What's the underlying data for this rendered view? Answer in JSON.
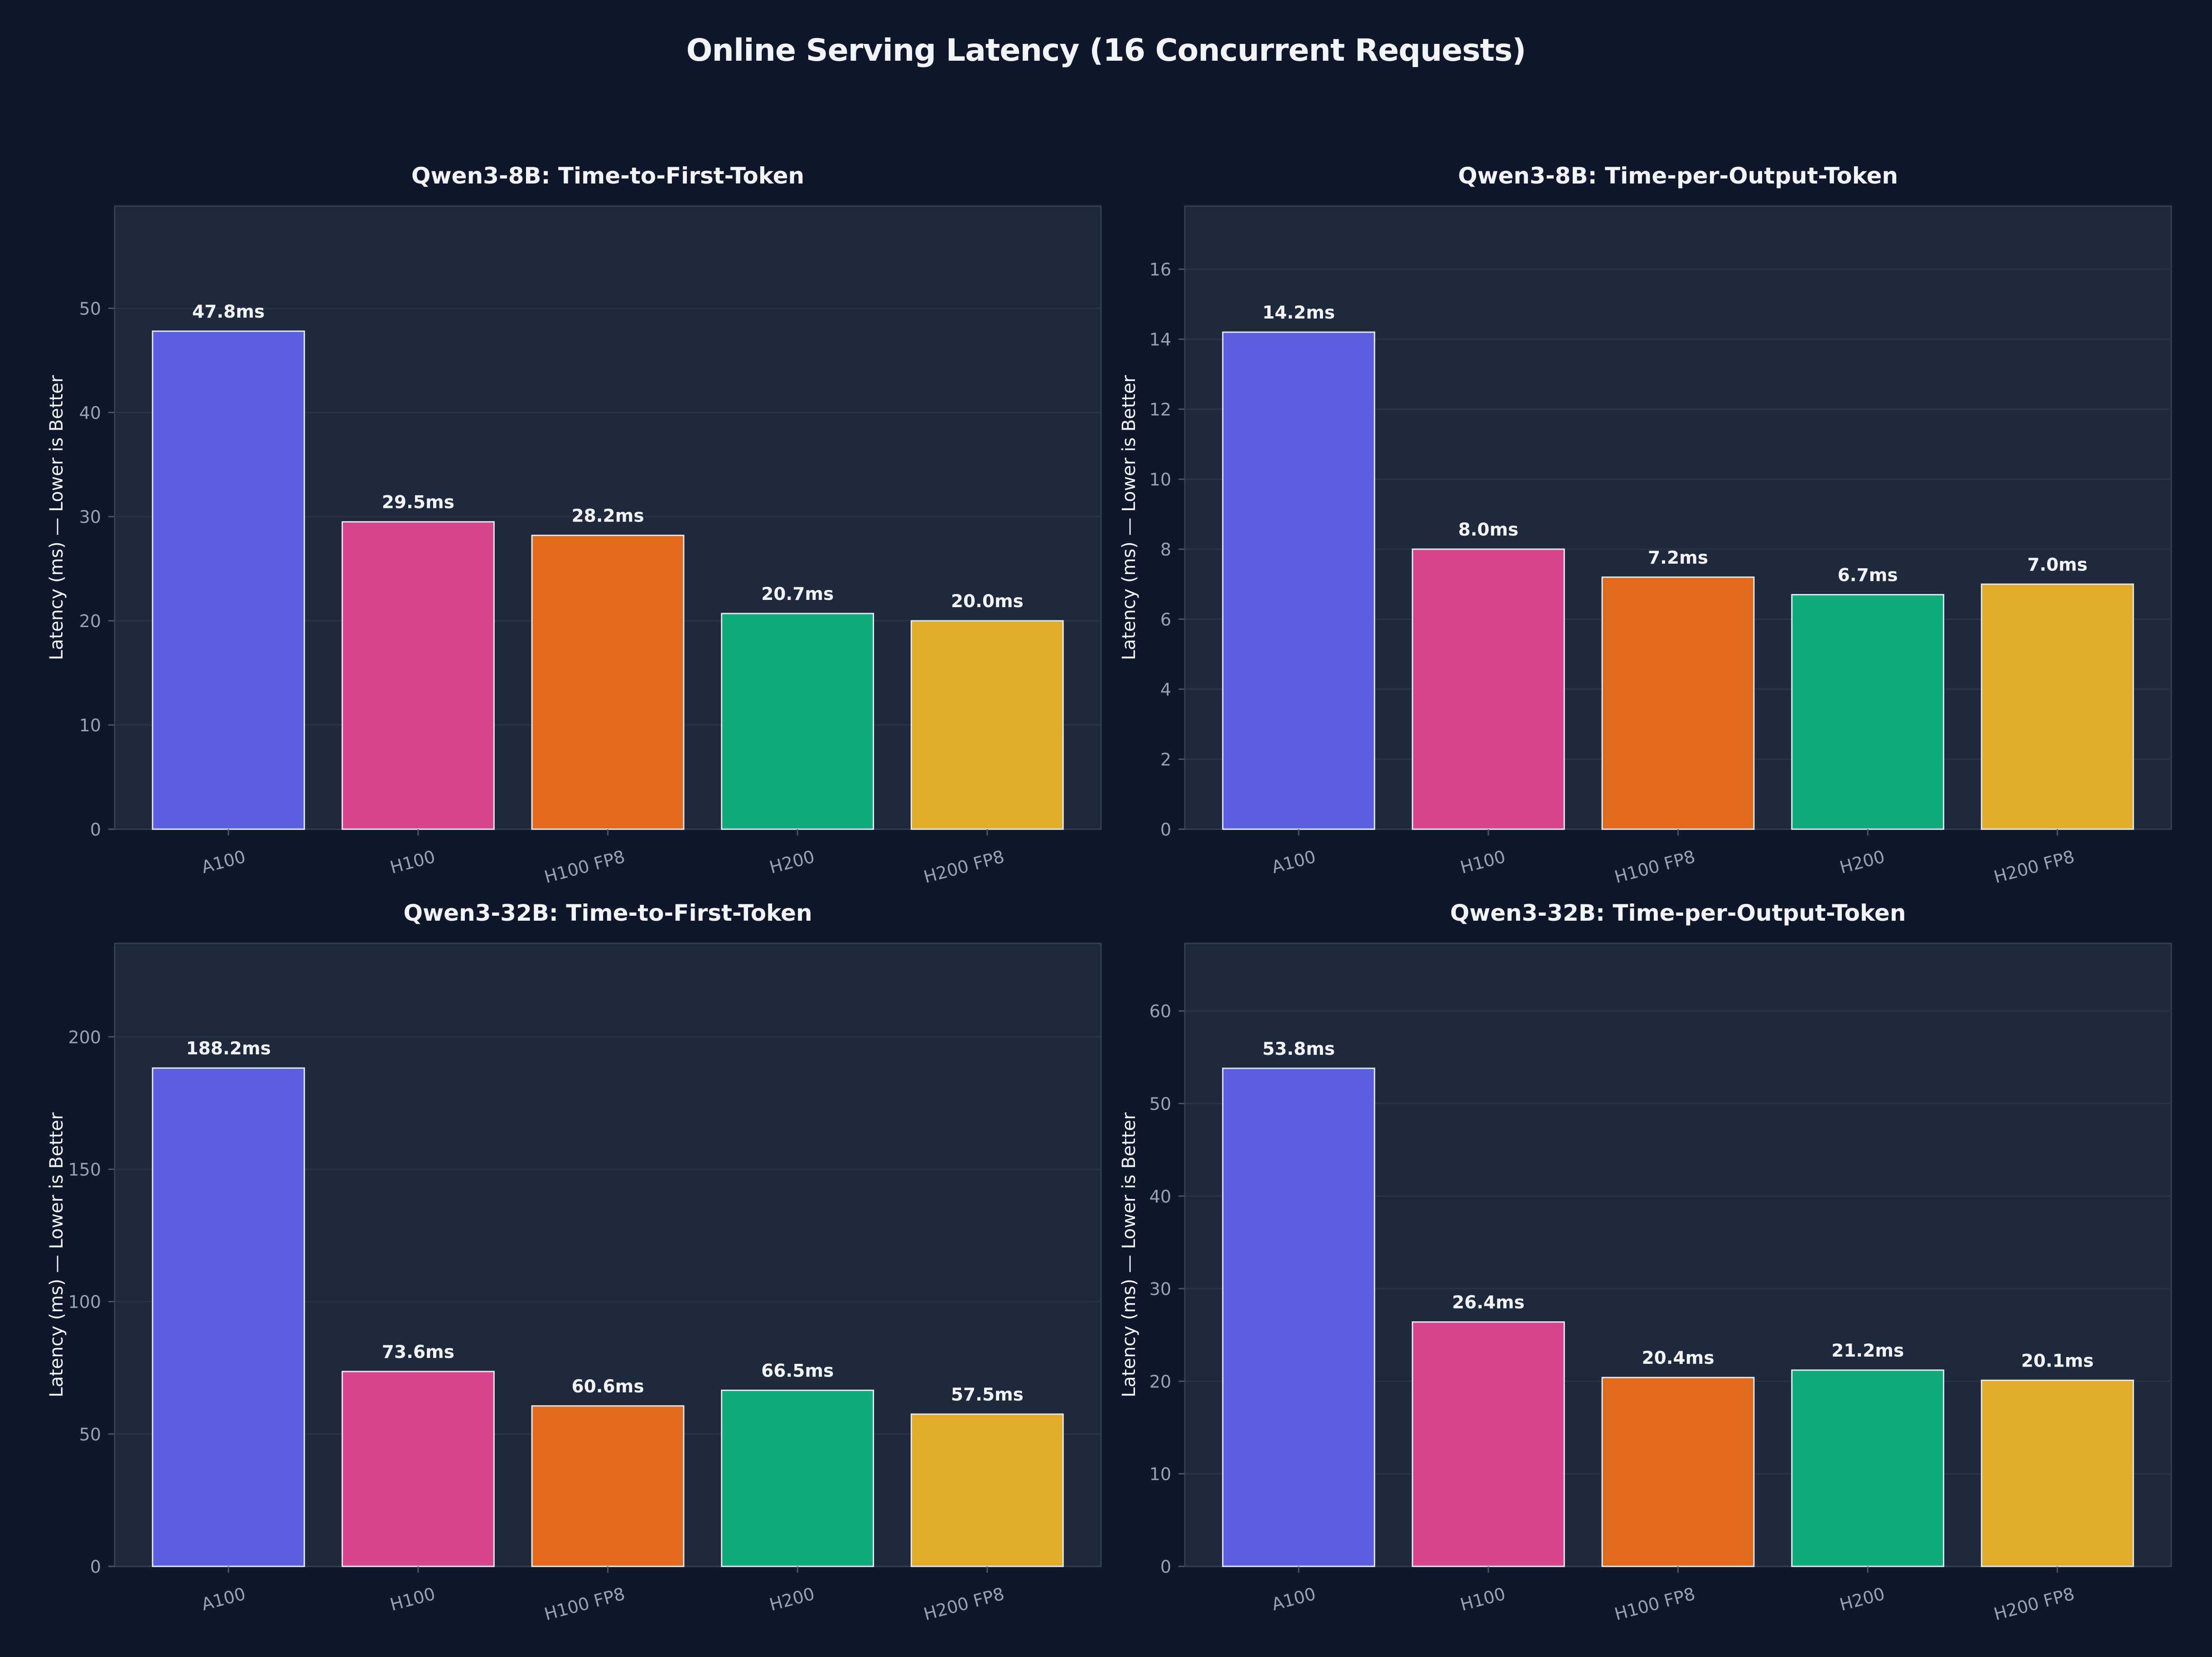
{
  "figure": {
    "title": "Online Serving Latency (16 Concurrent Requests)"
  },
  "colors": {
    "background": "#0f172a",
    "panel": "#1e293b",
    "grid": "#273449",
    "axis_text": "#94a3b8",
    "title_text": "#f1f5f9",
    "bar_edge": "#e2e8f0",
    "A100": "#5b5fdf",
    "H100": "#d6458e",
    "H100 FP8": "#e0691a",
    "H200": "#10ab7a",
    "H200 FP8": "#e0ac2a"
  },
  "chart_data": [
    {
      "type": "bar",
      "title": "Qwen3-8B: Time-to-First-Token",
      "xlabel": "",
      "ylabel": "Latency (ms) — Lower is Better",
      "categories": [
        "A100",
        "H100",
        "H100 FP8",
        "H200",
        "H200 FP8"
      ],
      "values": [
        47.8,
        29.5,
        28.2,
        20.7,
        20.0
      ],
      "data_labels": [
        "47.8ms",
        "29.5ms",
        "28.2ms",
        "20.7ms",
        "20.0ms"
      ],
      "ylim": [
        0,
        59.8
      ],
      "yticks": [
        0,
        10,
        20,
        30,
        40,
        50
      ],
      "ytick_labels": [
        "0",
        "10",
        "20",
        "30",
        "40",
        "50"
      ],
      "grid": true
    },
    {
      "type": "bar",
      "title": "Qwen3-8B: Time-per-Output-Token",
      "xlabel": "",
      "ylabel": "Latency (ms) — Lower is Better",
      "categories": [
        "A100",
        "H100",
        "H100 FP8",
        "H200",
        "H200 FP8"
      ],
      "values": [
        14.2,
        8.0,
        7.2,
        6.7,
        7.0
      ],
      "data_labels": [
        "14.2ms",
        "8.0ms",
        "7.2ms",
        "6.7ms",
        "7.0ms"
      ],
      "ylim": [
        0,
        17.8
      ],
      "yticks": [
        0,
        2,
        4,
        6,
        8,
        10,
        12,
        14,
        16
      ],
      "ytick_labels": [
        "0",
        "2",
        "4",
        "6",
        "8",
        "10",
        "12",
        "14",
        "16"
      ],
      "grid": true
    },
    {
      "type": "bar",
      "title": "Qwen3-32B: Time-to-First-Token",
      "xlabel": "",
      "ylabel": "Latency (ms) — Lower is Better",
      "categories": [
        "A100",
        "H100",
        "H100 FP8",
        "H200",
        "H200 FP8"
      ],
      "values": [
        188.2,
        73.6,
        60.6,
        66.5,
        57.5
      ],
      "data_labels": [
        "188.2ms",
        "73.6ms",
        "60.6ms",
        "66.5ms",
        "57.5ms"
      ],
      "ylim": [
        0,
        235.3
      ],
      "yticks": [
        0,
        50,
        100,
        150,
        200
      ],
      "ytick_labels": [
        "0",
        "50",
        "100",
        "150",
        "200"
      ],
      "grid": true
    },
    {
      "type": "bar",
      "title": "Qwen3-32B: Time-per-Output-Token",
      "xlabel": "",
      "ylabel": "Latency (ms) — Lower is Better",
      "categories": [
        "A100",
        "H100",
        "H100 FP8",
        "H200",
        "H200 FP8"
      ],
      "values": [
        53.8,
        26.4,
        20.4,
        21.2,
        20.1
      ],
      "data_labels": [
        "53.8ms",
        "26.4ms",
        "20.4ms",
        "21.2ms",
        "20.1ms"
      ],
      "ylim": [
        0,
        67.3
      ],
      "yticks": [
        0,
        10,
        20,
        30,
        40,
        50,
        60
      ],
      "ytick_labels": [
        "0",
        "10",
        "20",
        "30",
        "40",
        "50",
        "60"
      ],
      "grid": true
    }
  ]
}
